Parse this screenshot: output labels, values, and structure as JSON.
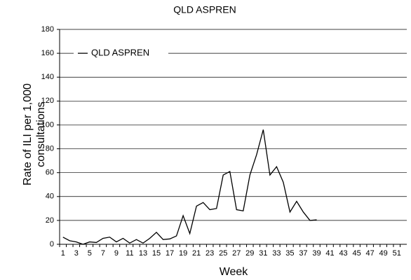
{
  "chart_data": {
    "type": "line",
    "title": "QLD ASPREN",
    "x_label": "Week",
    "y_label": "Rate of ILI per 1,000 consultations",
    "categories": [
      1,
      null,
      3,
      null,
      5,
      null,
      7,
      null,
      9,
      null,
      11,
      null,
      13,
      null,
      15,
      null,
      17,
      null,
      19,
      null,
      21,
      null,
      23,
      null,
      25,
      null,
      27,
      null,
      29,
      null,
      31,
      null,
      33,
      null,
      35,
      null,
      37,
      null,
      39,
      null,
      41,
      null,
      43,
      null,
      45,
      null,
      47,
      null,
      49,
      null,
      51,
      null
    ],
    "series": [
      {
        "name": "QLD ASPREN",
        "color": "#000000",
        "values": [
          6,
          3,
          2,
          0,
          2,
          1.5,
          5,
          6,
          2,
          5,
          1,
          4,
          1,
          5,
          10,
          4,
          4.5,
          7,
          24,
          9,
          32,
          35,
          29,
          30,
          58,
          61,
          29,
          28,
          58,
          75,
          96,
          58,
          65,
          52,
          27,
          36,
          27,
          20,
          20.5,
          null,
          null,
          null,
          null,
          null,
          null,
          null,
          null,
          null,
          null,
          null,
          null,
          null
        ]
      }
    ],
    "ylim": [
      0,
      180
    ],
    "yticks": [
      0,
      20,
      40,
      60,
      80,
      100,
      120,
      140,
      160,
      180
    ],
    "grid": true,
    "legend": "top-left"
  }
}
